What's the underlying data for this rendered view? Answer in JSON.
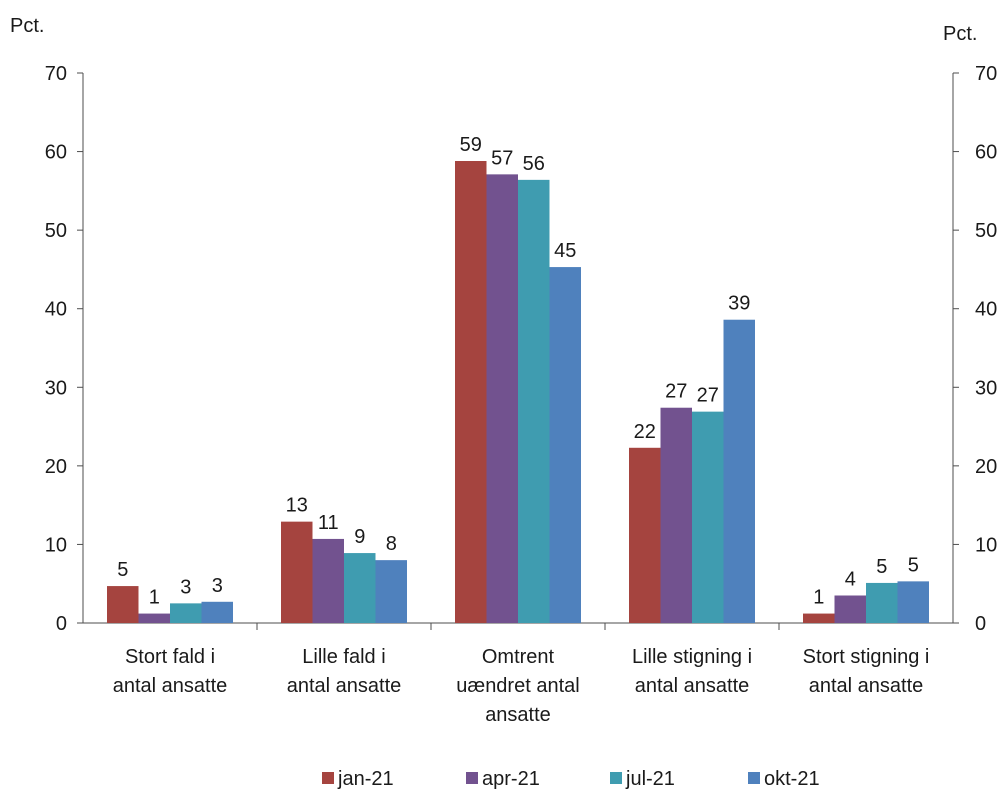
{
  "chart_data": {
    "type": "bar",
    "left_axis_unit": "Pct.",
    "right_axis_unit": "Pct.",
    "ylim": [
      0,
      70
    ],
    "yticks": [
      0,
      10,
      20,
      30,
      40,
      50,
      60,
      70
    ],
    "grid": false,
    "legend_position": "bottom",
    "categories": [
      [
        "Stort fald i",
        "antal ansatte"
      ],
      [
        "Lille fald i",
        "antal ansatte"
      ],
      [
        "Omtrent",
        "uændret antal",
        "ansatte"
      ],
      [
        "Lille stigning i",
        "antal ansatte"
      ],
      [
        "Stort stigning i",
        "antal ansatte"
      ]
    ],
    "series": [
      {
        "name": "jan-21",
        "color": "#a5443f",
        "values": [
          4.7,
          12.9,
          58.8,
          22.3,
          1.2
        ],
        "labels": [
          "5",
          "13",
          "59",
          "22",
          "1"
        ]
      },
      {
        "name": "apr-21",
        "color": "#72528f",
        "values": [
          1.2,
          10.7,
          57.1,
          27.4,
          3.5
        ],
        "labels": [
          "1",
          "11",
          "57",
          "27",
          "4"
        ]
      },
      {
        "name": "jul-21",
        "color": "#3f9cb0",
        "values": [
          2.5,
          8.9,
          56.4,
          26.9,
          5.1
        ],
        "labels": [
          "3",
          "9",
          "56",
          "27",
          "5"
        ]
      },
      {
        "name": "okt-21",
        "color": "#4f81bd",
        "values": [
          2.7,
          8.0,
          45.3,
          38.6,
          5.3
        ],
        "labels": [
          "3",
          "8",
          "45",
          "39",
          "5"
        ]
      }
    ]
  }
}
